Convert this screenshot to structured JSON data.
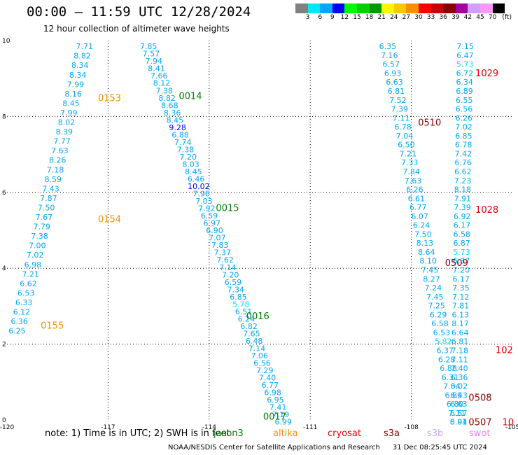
{
  "header": {
    "title": "00:00 – 11:59 UTC 12/28/2024",
    "subtitle": "12 hour collection of altimeter wave heights"
  },
  "legend": {
    "colors": [
      "#808080",
      "#00e8f8",
      "#00a8f8",
      "#0000f0",
      "#00f800",
      "#00d000",
      "#009800",
      "#f8f800",
      "#f8c800",
      "#f89000",
      "#f80000",
      "#c80000",
      "#880000",
      "#a000a0",
      "#d0a0f8",
      "#f898f8",
      "#000000"
    ],
    "labels": [
      "3",
      "6",
      "9",
      "12",
      "15",
      "18",
      "21",
      "24",
      "27",
      "30",
      "33",
      "36",
      "39",
      "42",
      "45",
      "70",
      "(ft)"
    ]
  },
  "chart_data": {
    "type": "scatter",
    "xlim": [
      -120,
      -105
    ],
    "ylim": [
      0,
      10
    ],
    "x_ticks": [
      "-120",
      "-117",
      "-114",
      "-111",
      "-108",
      "-105"
    ],
    "y_ticks": [
      "0",
      "2",
      "4",
      "6",
      "8",
      "10"
    ],
    "grid": true,
    "tracks": [
      {
        "id": "0153",
        "color": "#f09000",
        "label_at": [
          -117.3,
          8.5
        ]
      },
      {
        "id": "0154",
        "color": "#f09000",
        "label_at": [
          -117.3,
          5.3
        ]
      },
      {
        "id": "0155",
        "color": "#f09000",
        "label_at": [
          -119.0,
          2.5
        ]
      },
      {
        "id": "0014",
        "color": "#008000",
        "label_at": [
          -114.9,
          8.55
        ]
      },
      {
        "id": "0015",
        "color": "#008000",
        "label_at": [
          -113.8,
          5.6
        ]
      },
      {
        "id": "0016",
        "color": "#008000",
        "label_at": [
          -112.9,
          2.75
        ]
      },
      {
        "id": "0017",
        "color": "#008000",
        "label_at": [
          -112.4,
          0.1
        ]
      },
      {
        "id": "0510",
        "color": "#880000",
        "label_at": [
          -107.8,
          7.85
        ]
      },
      {
        "id": "0509",
        "color": "#880000",
        "label_at": [
          -107.0,
          4.15
        ]
      },
      {
        "id": "0508",
        "color": "#880000",
        "label_at": [
          -106.3,
          0.6
        ]
      },
      {
        "id": "0507",
        "color": "#880000",
        "label_at": [
          -106.3,
          -0.05
        ]
      },
      {
        "id": "1029",
        "color": "#e00000",
        "label_at": [
          -106.1,
          9.15
        ]
      },
      {
        "id": "1028",
        "color": "#e00000",
        "label_at": [
          -106.1,
          5.55
        ]
      },
      {
        "id": "102",
        "color": "#e00000",
        "label_at": [
          -105.5,
          1.85
        ]
      },
      {
        "id": "10",
        "color": "#e00000",
        "label_at": [
          -105.3,
          -0.05
        ]
      }
    ],
    "series": [
      {
        "track": "0153-0155",
        "x0": -117.7,
        "x1": -119.7,
        "y0": 9.85,
        "y1": 2.35,
        "values": [
          "7.71",
          "8.82",
          "8.34",
          "8.34",
          "7.99",
          "8.16",
          "8.45",
          "7.99",
          "8.02",
          "8.39",
          "7.77",
          "7.63",
          "8.26",
          "7.18",
          "8.59",
          "7.43",
          "7.87",
          "7.50",
          "7.67",
          "7.79",
          "7.38",
          "7.00",
          "7.02",
          "6.98",
          "7.21",
          "6.62",
          "6.53",
          "6.33",
          "6.12",
          "6.36",
          "6.25"
        ]
      },
      {
        "track": "0014-0017",
        "x0": -115.8,
        "x1": -111.8,
        "y0": 9.85,
        "y1": -0.05,
        "values": [
          "7.85",
          "7.57",
          "7.94",
          "8.41",
          "7.66",
          "8.12",
          "7.38",
          "8.82",
          "8.68",
          "8.36",
          "8.45",
          "9.28",
          "6.88",
          "7.74",
          "7.38",
          "7.20",
          "8.03",
          "8.45",
          "6.46",
          "10.02",
          "7.96",
          "7.03",
          "7.92",
          "6.59",
          "6.97",
          "6.90",
          "7.07",
          "7.83",
          "7.37",
          "7.62",
          "7.14",
          "7.20",
          "6.59",
          "7.34",
          "6.85",
          "5.78",
          "6.51",
          "6.24",
          "6.82",
          "7.65",
          "6.48",
          "7.14",
          "7.06",
          "6.56",
          "7.29",
          "7.40",
          "6.77",
          "6.98",
          "6.95",
          "7.41",
          "7.19",
          "6.99"
        ]
      },
      {
        "track": "0510-0507",
        "x0": -108.7,
        "x1": -106.6,
        "y0": 9.85,
        "y1": -0.05,
        "values": [
          "6.35",
          "7.16",
          "6.57",
          "6.93",
          "6.63",
          "6.81",
          "7.52",
          "7.39",
          "7.11",
          "6.78",
          "7.04",
          "6.50",
          "7.21",
          "7.33",
          "7.84",
          "7.63",
          "6.26",
          "6.61",
          "6.77",
          "6.07",
          "6.24",
          "7.50",
          "8.13",
          "8.64",
          "8.10",
          "7.45",
          "8.27",
          "7.24",
          "7.45",
          "7.25",
          "6.29",
          "6.58",
          "6.53",
          "5.82",
          "6.37",
          "6.28",
          "6.88",
          "6.31",
          "7.04",
          "6.89",
          "6.80",
          "7.11",
          "8.04"
        ]
      },
      {
        "track": "1029-102",
        "x0": -106.4,
        "x1": -106.6,
        "y0": 9.85,
        "y1": -0.05,
        "values": [
          "7.15",
          "6.47",
          "5.73",
          "6.72",
          "6.34",
          "6.89",
          "6.55",
          "6.56",
          "6.26",
          "7.02",
          "6.85",
          "6.78",
          "7.42",
          "6.76",
          "6.62",
          "7.23",
          "8.18",
          "7.91",
          "7.39",
          "6.92",
          "6.17",
          "6.58",
          "6.87",
          "5.73",
          "6.37",
          "7.20",
          "6.17",
          "7.35",
          "7.12",
          "7.81",
          "6.13",
          "8.17",
          "6.64",
          "6.81",
          "7.18",
          "7.11",
          "7.40",
          "6.36",
          "6.02",
          "6.43",
          "6.63",
          "6.57",
          "6.91"
        ]
      }
    ]
  },
  "footer": {
    "note": "note:  1) Time is in UTC; 2) SWH is in feet",
    "satellites": [
      {
        "name": "jason3",
        "color": "#008000"
      },
      {
        "name": "altika",
        "color": "#f09000"
      },
      {
        "name": "cryosat",
        "color": "#e00000"
      },
      {
        "name": "s3a",
        "color": "#880000"
      },
      {
        "name": "s3b",
        "color": "#c8a8f0"
      },
      {
        "name": "swot",
        "color": "#f080f0"
      }
    ],
    "credit": "NOAA/NESDIS Center for Satellite Applications and Research",
    "timestamp": "31 Dec 08:25:45 UTC 2024"
  }
}
